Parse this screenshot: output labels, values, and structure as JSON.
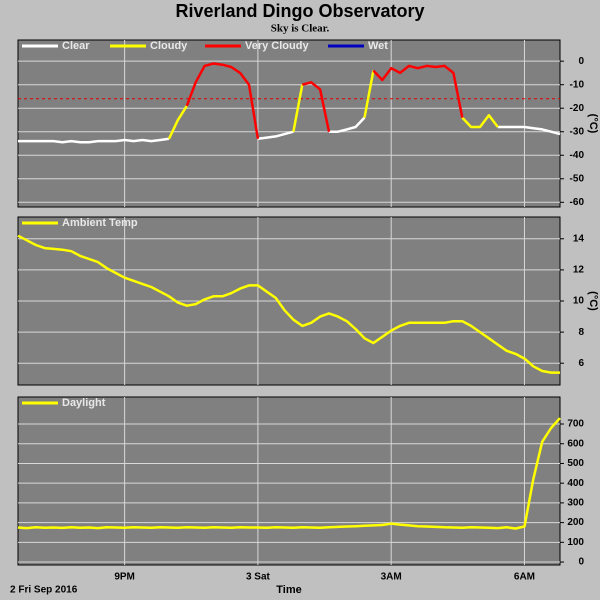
{
  "chart_data": {
    "type": "line",
    "title": "Riverland Dingo Observatory",
    "subtitle": "Sky is Clear.",
    "x_label": "Time",
    "date_label": "2 Fri Sep 2016",
    "x": [
      18.6,
      18.8,
      19,
      19.2,
      19.4,
      19.6,
      19.8,
      20,
      20.2,
      20.4,
      20.6,
      20.8,
      21,
      21.2,
      21.4,
      21.6,
      21.8,
      22,
      22.2,
      22.4,
      22.6,
      22.8,
      23,
      23.2,
      23.4,
      23.6,
      23.8,
      24,
      24.2,
      24.4,
      24.6,
      24.8,
      25,
      25.2,
      25.4,
      25.6,
      25.8,
      26,
      26.2,
      26.4,
      26.6,
      26.8,
      27,
      27.2,
      27.4,
      27.6,
      27.8,
      28,
      28.2,
      28.4,
      28.6,
      28.8,
      29,
      29.2,
      29.4,
      29.6,
      29.8,
      30,
      30.2,
      30.4,
      30.6,
      30.8
    ],
    "xlim": [
      18.6,
      30.8
    ],
    "xticks": [
      {
        "value": 21,
        "label": "9PM"
      },
      {
        "value": 24,
        "label": "3 Sat"
      },
      {
        "value": 27,
        "label": "3AM"
      },
      {
        "value": 30,
        "label": "6AM"
      }
    ],
    "grid": true,
    "panels": [
      {
        "y_label": "(°C)",
        "ylim": [
          -62,
          9
        ],
        "yticks": [
          0,
          -10,
          -20,
          -30,
          -40,
          -50,
          -60
        ],
        "threshold": -16,
        "threshold_color": "#e00000",
        "series": [
          {
            "name": "Clear",
            "color": "#ffffff",
            "values": [
              -34,
              -34,
              -34,
              -34,
              -34,
              -34.5,
              -34,
              -34.5,
              -34.5,
              -34,
              -34,
              -34,
              -33.5,
              -34,
              -33.5,
              -34,
              -33.5,
              -33,
              null,
              null,
              null,
              null,
              null,
              null,
              null,
              null,
              null,
              -33,
              -32.5,
              -32,
              -31,
              -30,
              null,
              null,
              null,
              -30,
              -30,
              -29,
              -28,
              -24,
              null,
              null,
              null,
              null,
              null,
              null,
              null,
              null,
              null,
              null,
              null,
              null,
              null,
              null,
              -28,
              -28,
              -28,
              -28,
              -28.5,
              -29,
              -30,
              -31
            ]
          },
          {
            "name": "Cloudy",
            "color": "#ffff00",
            "values": [
              null,
              null,
              null,
              null,
              null,
              null,
              null,
              null,
              null,
              null,
              null,
              null,
              null,
              null,
              null,
              null,
              null,
              -33,
              -25,
              -19,
              null,
              null,
              null,
              null,
              null,
              null,
              null,
              null,
              null,
              null,
              null,
              -30,
              -10,
              null,
              null,
              null,
              null,
              null,
              null,
              -24,
              -4,
              null,
              null,
              null,
              null,
              null,
              null,
              null,
              null,
              null,
              -24,
              -28,
              -28,
              -23,
              -28,
              null,
              null,
              null,
              null,
              null,
              null,
              null
            ]
          },
          {
            "name": "Very Cloudy",
            "color": "#ff0000",
            "values": [
              null,
              null,
              null,
              null,
              null,
              null,
              null,
              null,
              null,
              null,
              null,
              null,
              null,
              null,
              null,
              null,
              null,
              null,
              null,
              -19,
              -9,
              -2,
              -1,
              -1.5,
              -2.5,
              -5,
              -10,
              -33,
              null,
              null,
              null,
              null,
              -10,
              -9,
              -12,
              -30,
              null,
              null,
              null,
              null,
              -4,
              -8,
              -3,
              -5,
              -2,
              -3,
              -2,
              -2.5,
              -2,
              -5,
              -24,
              null,
              null,
              null,
              null,
              null,
              null,
              null,
              null,
              null,
              null,
              null
            ]
          },
          {
            "name": "Wet",
            "color": "#0000c0",
            "values": [
              null,
              null,
              null,
              null,
              null,
              null,
              null,
              null,
              null,
              null,
              null,
              null,
              null,
              null,
              null,
              null,
              null,
              null,
              null,
              null,
              null,
              null,
              null,
              null,
              null,
              null,
              null,
              null,
              null,
              null,
              null,
              null,
              null,
              null,
              null,
              null,
              null,
              null,
              null,
              null,
              null,
              null,
              null,
              null,
              null,
              null,
              null,
              null,
              null,
              null,
              null,
              null,
              null,
              null,
              null,
              null,
              null,
              null,
              null,
              null,
              null,
              null
            ]
          }
        ]
      },
      {
        "y_label": "(°C)",
        "ylim": [
          4.6,
          15.4
        ],
        "yticks": [
          6,
          8,
          10,
          12,
          14
        ],
        "series": [
          {
            "name": "Ambient Temp",
            "color": "#ffff00",
            "values": [
              14.2,
              13.9,
              13.6,
              13.4,
              13.35,
              13.3,
              13.2,
              12.9,
              12.7,
              12.5,
              12.1,
              11.8,
              11.5,
              11.3,
              11.1,
              10.9,
              10.6,
              10.3,
              9.9,
              9.7,
              9.8,
              10.1,
              10.3,
              10.3,
              10.5,
              10.8,
              11,
              11,
              10.6,
              10.2,
              9.4,
              8.8,
              8.4,
              8.6,
              9,
              9.2,
              9,
              8.7,
              8.2,
              7.6,
              7.3,
              7.7,
              8.1,
              8.4,
              8.6,
              8.6,
              8.6,
              8.6,
              8.6,
              8.7,
              8.7,
              8.4,
              8,
              7.6,
              7.2,
              6.8,
              6.6,
              6.3,
              5.8,
              5.5,
              5.4,
              5.4
            ]
          }
        ]
      },
      {
        "ylim": [
          -15,
          837
        ],
        "yticks": [
          0,
          100,
          200,
          300,
          400,
          500,
          600,
          700
        ],
        "series": [
          {
            "name": "Daylight",
            "color": "#ffff00",
            "values": [
              175,
              172,
              176,
              174,
              175,
              173,
              176,
              174,
              175,
              172,
              176,
              175,
              174,
              176,
              175,
              174,
              176,
              175,
              174,
              176,
              175,
              174,
              176,
              175,
              174,
              176,
              175,
              175,
              174,
              176,
              175,
              174,
              176,
              175,
              174,
              176,
              178,
              180,
              182,
              184,
              186,
              188,
              195,
              190,
              186,
              182,
              180,
              178,
              176,
              175,
              174,
              176,
              175,
              174,
              172,
              176,
              170,
              180,
              420,
              610,
              680,
              730
            ]
          }
        ]
      }
    ]
  }
}
